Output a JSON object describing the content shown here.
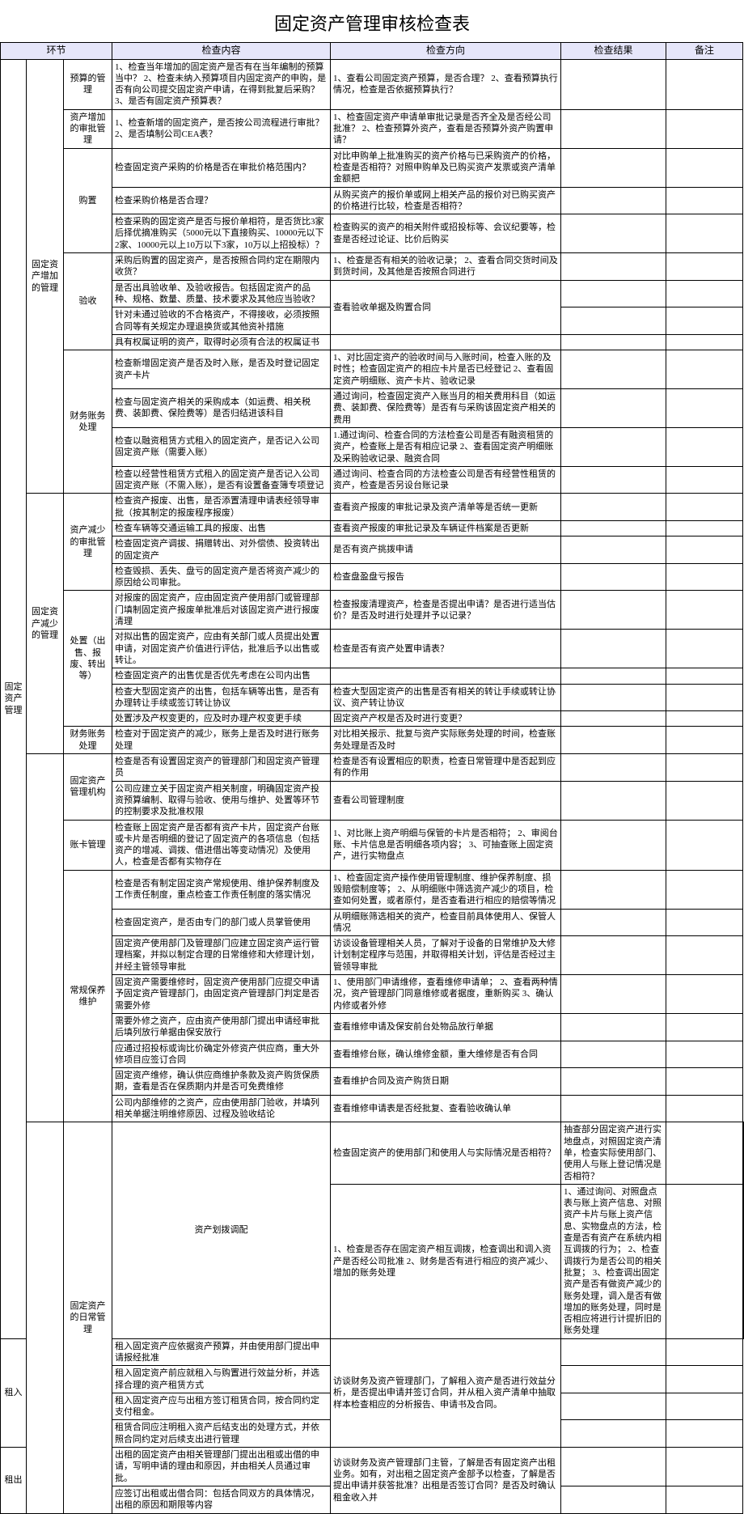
{
  "title": "固定资产管理审核检查表",
  "headers": {
    "h1": "环节",
    "h2": "检查内容",
    "h3": "检查方向",
    "h4": "检查结果",
    "h5": "备注"
  },
  "colors": {
    "header_bg": "#e6e6fa",
    "border": "#000000"
  },
  "g1": {
    "label": "固定资产管理"
  },
  "g1a": {
    "label": "固定资产增加的管理",
    "s1": {
      "label": "预算的管理",
      "r1c": "1、检查当年增加的固定资产是否有在当年编制的预算当中？\n2、检查未纳入预算项目内固定资产的申购，是否有向公司提交固定资产申请，在得到批复后采购？\n3、是否有固定资产预算表？",
      "r1d": "1、查看公司固定资产预算，是否合理？\n2、查看预算执行情况，检查是否依据预算执行？"
    },
    "s2": {
      "label": "资产增加的审批管理",
      "r1c": "1、检查新增的固定资产，是否按公司流程进行审批？\n2、是否填制公司CEA表？",
      "r1d": "1、检查固定资产申请单审批记录是否齐全及是否经公司批准？\n2、检查预算外资产，查看是否预算外资产购置申请？"
    },
    "s3": {
      "label": "购置",
      "r1c": "检查固定资产采购的价格是否在审批价格范围内？",
      "r1d": "对比申购单上批准购买的资产价格与已采购资产的价格，检查是否相符？对照申购单及已购买资产发票或资产清单金额把",
      "r2c": "检查采购价格是否合理？",
      "r2d": "从购买资产的报价单或网上相关产品的报价对已购买资产的价格进行比较，检查是否相符？",
      "r3c": "检查采购的固定资产是否与报价单相符，是否货比3家后择优摘准购买（5000元以下直接购买、10000元以下2家、10000元以上10万以下3家，10万以上招投标）？",
      "r3d": "检查购买的资产的相关附件或招投标等、会议纪要等，检查是否经过论证、比价后购买"
    },
    "s4": {
      "label": "验收",
      "r1c": "采购后购置的固定资产，是否按照合同约定在期限内收货？",
      "r1d": "1、检查是否有相关的验收记录；\n2、查看合同交货时间及到货时间，及其他是否按照合同进行",
      "r2c": "是否出具验收单、及验收报告。包括固定资产的品种、规格、数量、质量、技术要求及其他应当验收？",
      "r2d": "",
      "r3c": "针对未通过验收的不合格资产，不得接收，必须按照合同等有关规定办理退换货或其他资补措施",
      "r3d": "查看验收单据及购置合同",
      "r4c": "具有权属证明的资产，取得时必须有合法的权属证书",
      "r4d": ""
    },
    "s5": {
      "label": "财务账务处理",
      "r1c": "检查新增固定资产是否及时入账，是否及时登记固定资产卡片",
      "r1d": "1、对比固定资产的验收时间与入账时间，检查入账的及时性；检查固定资产的相应卡片是否已经登记\n2、查看固定资产明细账、资产卡片、验收记录",
      "r2c": "检查与固定资产相关的采购成本（如运费、相关税费、装卸费、保险费等）是否归结进该科目",
      "r2d": "通过询问，检查固定资产入账当月的相关费用科目（如运费、装卸费、保险费等）是否有与采购该固定资产相关的费用",
      "r3c": "检查以融资租赁方式租入的固定资产，是否记入公司固定资产账（需要入账）",
      "r3d": "1.通过询问、检查合同的方法检查公司是否有融资租赁的资产，检查账上是否有相应记录\n2、查看固定资产明细账及采购验收记录、融资合同",
      "r4c": "检查以经营性租赁方式租入的固定资产是否记入公司固定资产账（不需入账），是否有设置备查簿专项登记",
      "r4d": "通过询问、检查合同的方法检查公司是否有经营性租赁的资产，检查是否另设台账记录"
    }
  },
  "g1b": {
    "label": "固定资产减少的管理",
    "s1": {
      "label": "资产减少的审批管理",
      "r1c": "检查资产报废、出售，是否添置清理申请表经领导审批（按其制定的报废程序报废）",
      "r1d": "查看资产报废的审批记录及资产清单等是否统一更新",
      "r2c": "检查车辆等交通运输工具的报废、出售",
      "r2d": "查看资产报废的审批记录及车辆证件档案是否更新",
      "r3c": "检查固定资产调拔、捐赠转出、对外偿债、投资转出的固定资产",
      "r3d": "是否有资产挑拨申请",
      "r4c": "检查毁损、丢失、盘亏的固定资产是否将资产减少的原因给公司审批。",
      "r4d": "检查盘盈盘亏报告"
    },
    "s2": {
      "label": "处置（出售、报废、转出等）",
      "r1c": "对报废的固定资产，应由固定资产使用部门或管理部门填制固定资产报废单批准后对该固定资产进行报废清理",
      "r1d": "检查报废清理资产，检查是否提出申请？是否进行适当估价？是否及时进行处理并予以记录？",
      "r2c": "对拟出售的固定资产，应由有关部门或人员提出处置申请，对固定资产价值进行评估，批准后予以出售或转让。",
      "r2d": "检查是否有资产处置申请表？",
      "r3c": "检查固定资产的出售优是否优先考虑在公司内出售",
      "r3d": "",
      "r4c": "检查大型固定资产的出售，包括车辆等出售，是否有办理转让手续或签订转让协议",
      "r4d": "检查大型固定资产的出售是否有相关的转让手续或转让协议、资产转让协议",
      "r5c": "处置涉及产权变更的，应及时办理产权变更手续",
      "r5d": "固定资产产权是否及时进行变更？"
    },
    "s3": {
      "label": "财务账务处理",
      "r1c": "检查对于固定资产的减少，账务上是否及时进行账务处理",
      "r1d": "对比相关报示、批复与资产实际账务处理的时间，检查账务处理是否及时"
    }
  },
  "g1c": {
    "label1": "固定资产管理机构",
    "r1c": "检查是否有设置固定资产的管理部门和固定资产管理员",
    "r1d": "检查是否有设置相应的职责，检查日常管理中是否起到应有的作用",
    "r2c": "公司应建立关于固定资产相关制度，明确固定资产投资预算编制、取得与验收、使用与维护、处置等环节的控制要求及批准权限",
    "r2d": "查看公司管理制度",
    "label2": "账卡管理",
    "r3c": "检查账上固定资产是否都有资产卡片，固定资产台账或卡片是否明细的登记了固定资产的各项信息（包括资产的增减、调拨、借进借出等变动情况）及使用人，检查是否都有实物存在",
    "r3d": "1、对比账上资产明细与保管的卡片是否相符；\n2、审阅台账、卡片信息是否明细各项内容；\n3、可抽查账上固定资产，进行实物盘点",
    "label3": "常规保养维护",
    "r4c": "检查是否有制定固定资产常规使用、维护保养制度及工作责任制度，重点检查工作责任制度的落实情况",
    "r4d": "1、检查固定资产操作使用管理制度、维护保养制度、损毁赔偿制度等；\n2、从明细账中筛选资产减少的项目，检查如何处置，或者原付，是否查看进行相应的赔偿等情况",
    "r5c": "检查固定资产，是否由专门的部门或人员掌管使用",
    "r5d": "从明细账筛选相关的资产，检查目前具体使用人、保管人情况",
    "r6c": "固定资产使用部门及管理部门应建立固定资产运行管理档案，并拟以制定合理的日常维修和大修理计划，并经主管领导审批",
    "r6d": "访谈设备管理相关人员，了解对于设备的日常维护及大修计划制定程序与范围，并取得相关计划，评估是否经过主管领导审批",
    "r7c": "固定资产需要维修时，固定资产使用部门应提交申请予固定资产管理部门，由固定资产管理部门判定是否需要外修",
    "r7d": "1、使用部门申请维修，查看维修申请单；\n2、查看两种情况，资产管理部门同意维修或者据度，重新购买\n3、确认内修或者外修",
    "r8c": "需要外修之资产，应由资产使用部门提出申请经审批后填列放行单据由保安放行",
    "r8d": "查看维修申请及保安前台处物品放行单据",
    "r9c": "应通过招投标或询比价确定外修资产供应商，重大外修项目应签订合同",
    "r9d": "查看维修台账，确认维修金额，重大维修是否有合同",
    "r10c": "固定资产维修，确认供应商维护条款及资产购货保质期，查看是否在保质期内并是否可免费维修",
    "r10d": "查看维护合同及资产购货日期",
    "r11c": "公司内部维修的之资产，应由使用部门验收，并填列相关单据注明维修原因、过程及验收结论",
    "r11d": "查看维修申请表是否经批复、查看验收确认单"
  },
  "g1d": {
    "label": "固定资产的日常管理",
    "s1": {
      "label": "资产划拨调配",
      "r1c": "检查固定资产的使用部门和使用人与实际情况是否相符？",
      "r1d": "抽查部分固定资产进行实地盘点，对照固定资产清单，检查实际使用部门、使用人与账上登记情况是否相符？",
      "r2c": "1、检查是否存在固定资产相互调拨，检查调出和调入资产是否经公司批准\n2、财务是否有进行相应的资产减少、增加的账务处理",
      "r2d": "1、通过询问、对照盘点表与账上资产信息、对照资产卡片与账上资产信息、实物盘点的方法，检查是否有资产在系统内相互调拨的行为；\n2、检查调拨行为是否公司的相关批复；\n3、检查调出固定资产是否有做资产减少的账务处理，调入是否有做增加的账务处理，同时是否相应将进行计提折旧的账务处理"
    },
    "s2": {
      "label": "租入",
      "r1c": "租入固定资产应依据资产预算，并由使用部门提出申请报经批准",
      "r1d": "",
      "r2c": "租入固定资产前应就租入与购置进行效益分析，并选择合理的资产租赁方式",
      "r2d": "访谈财务及资产管理部门，了解租入资产是否进行效益分析，是否提出申请并签订合同，并从租入资产清单中抽取样本检查相应的分析报告、申请书及合同。",
      "r3c": "租入固定资产应与出租方签订租赁合同，按合同约定支付租金。",
      "r3d": "",
      "r4c": "租赁合同应注明租入资产后结支出的处理方式，并依照合同约定对后续支出进行管理",
      "r4d": ""
    },
    "s3": {
      "label": "租出",
      "r1c": "出租的固定资产由相关管理部门提出出租或出借的申请，写明申请的理由和原因，并由相关人员通过审批。",
      "r1d": "",
      "r2c": "应签订出租或出借合同：包括合同双方的具体情况，出租的原因和期限等内容",
      "r2d": "访谈财务及资产管理部门主管，了解是否有固定资产出租业务。如有，对出租之固定资产金部予以检查，了解是否提出申请并获答批准？出租是否签订合同？是否及时确认租金收入并"
    }
  }
}
